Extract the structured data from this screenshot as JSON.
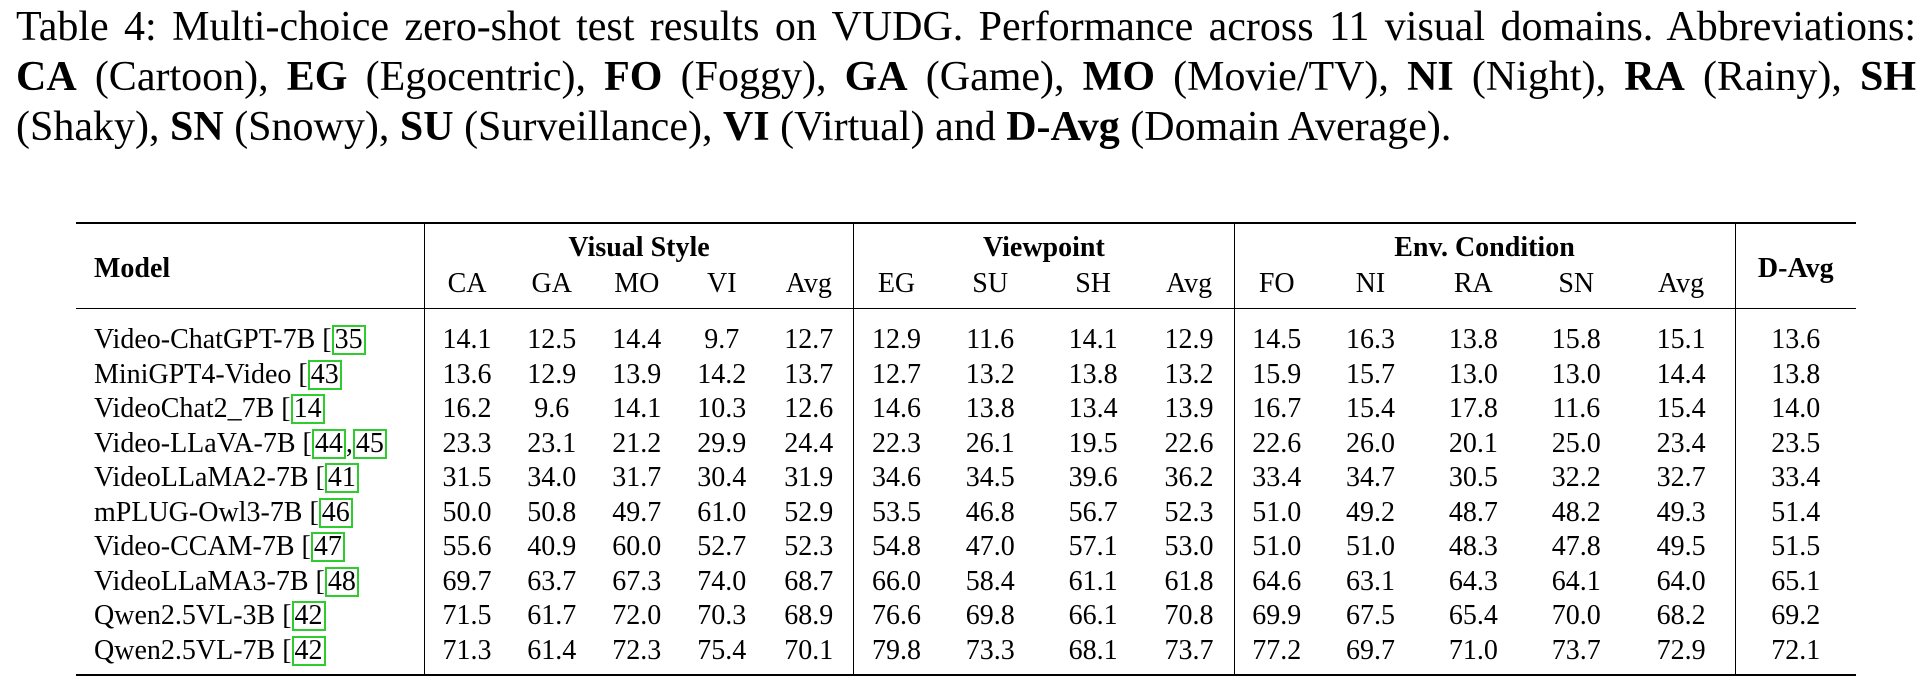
{
  "caption": {
    "prefix": "Table 4: Multi-choice zero-shot test results on VUDG. Performance across 11 visual domains. Abbreviations: ",
    "abbreviations": [
      {
        "abbr": "CA",
        "full": "(Cartoon)"
      },
      {
        "abbr": "EG",
        "full": "(Egocentric)"
      },
      {
        "abbr": "FO",
        "full": "(Foggy)"
      },
      {
        "abbr": "GA",
        "full": "(Game)"
      },
      {
        "abbr": "MO",
        "full": "(Movie/TV)"
      },
      {
        "abbr": "NI",
        "full": "(Night)"
      },
      {
        "abbr": "RA",
        "full": "(Rainy)"
      },
      {
        "abbr": "SH",
        "full": "(Shaky)"
      },
      {
        "abbr": "SN",
        "full": "(Snowy)"
      },
      {
        "abbr": "SU",
        "full": "(Surveillance)"
      },
      {
        "abbr": "VI",
        "full": "(Virtual)"
      },
      {
        "abbr": "D-Avg",
        "full": "(Domain Average)."
      }
    ],
    "and_word": "and"
  },
  "table": {
    "model_header": "Model",
    "davg_header": "D-Avg",
    "groups": [
      {
        "name": "Visual Style",
        "cols": [
          "CA",
          "GA",
          "MO",
          "VI",
          "Avg"
        ]
      },
      {
        "name": "Viewpoint",
        "cols": [
          "EG",
          "SU",
          "SH",
          "Avg"
        ]
      },
      {
        "name": "Env. Condition",
        "cols": [
          "FO",
          "NI",
          "RA",
          "SN",
          "Avg"
        ]
      }
    ],
    "rows": [
      {
        "model": "Video-ChatGPT-7B",
        "refs": [
          "35"
        ],
        "vals": [
          "14.1",
          "12.5",
          "14.4",
          "9.7",
          "12.7",
          "12.9",
          "11.6",
          "14.1",
          "12.9",
          "14.5",
          "16.3",
          "13.8",
          "15.8",
          "15.1",
          "13.6"
        ]
      },
      {
        "model": "MiniGPT4-Video",
        "refs": [
          "43"
        ],
        "vals": [
          "13.6",
          "12.9",
          "13.9",
          "14.2",
          "13.7",
          "12.7",
          "13.2",
          "13.8",
          "13.2",
          "15.9",
          "15.7",
          "13.0",
          "13.0",
          "14.4",
          "13.8"
        ]
      },
      {
        "model": "VideoChat2_7B",
        "refs": [
          "14"
        ],
        "vals": [
          "16.2",
          "9.6",
          "14.1",
          "10.3",
          "12.6",
          "14.6",
          "13.8",
          "13.4",
          "13.9",
          "16.7",
          "15.4",
          "17.8",
          "11.6",
          "15.4",
          "14.0"
        ]
      },
      {
        "model": "Video-LLaVA-7B",
        "refs": [
          "44",
          "45"
        ],
        "vals": [
          "23.3",
          "23.1",
          "21.2",
          "29.9",
          "24.4",
          "22.3",
          "26.1",
          "19.5",
          "22.6",
          "22.6",
          "26.0",
          "20.1",
          "25.0",
          "23.4",
          "23.5"
        ]
      },
      {
        "model": "VideoLLaMA2-7B",
        "refs": [
          "41"
        ],
        "vals": [
          "31.5",
          "34.0",
          "31.7",
          "30.4",
          "31.9",
          "34.6",
          "34.5",
          "39.6",
          "36.2",
          "33.4",
          "34.7",
          "30.5",
          "32.2",
          "32.7",
          "33.4"
        ]
      },
      {
        "model": "mPLUG-Owl3-7B",
        "refs": [
          "46"
        ],
        "vals": [
          "50.0",
          "50.8",
          "49.7",
          "61.0",
          "52.9",
          "53.5",
          "46.8",
          "56.7",
          "52.3",
          "51.0",
          "49.2",
          "48.7",
          "48.2",
          "49.3",
          "51.4"
        ]
      },
      {
        "model": "Video-CCAM-7B",
        "refs": [
          "47"
        ],
        "vals": [
          "55.6",
          "40.9",
          "60.0",
          "52.7",
          "52.3",
          "54.8",
          "47.0",
          "57.1",
          "53.0",
          "51.0",
          "51.0",
          "48.3",
          "47.8",
          "49.5",
          "51.5"
        ]
      },
      {
        "model": "VideoLLaMA3-7B",
        "refs": [
          "48"
        ],
        "vals": [
          "69.7",
          "63.7",
          "67.3",
          "74.0",
          "68.7",
          "66.0",
          "58.4",
          "61.1",
          "61.8",
          "64.6",
          "63.1",
          "64.3",
          "64.1",
          "64.0",
          "65.1"
        ]
      },
      {
        "model": "Qwen2.5VL-3B",
        "refs": [
          "42"
        ],
        "vals": [
          "71.5",
          "61.7",
          "72.0",
          "70.3",
          "68.9",
          "76.6",
          "69.8",
          "66.1",
          "70.8",
          "69.9",
          "67.5",
          "65.4",
          "70.0",
          "68.2",
          "69.2"
        ]
      },
      {
        "model": "Qwen2.5VL-7B",
        "refs": [
          "42"
        ],
        "vals": [
          "71.3",
          "61.4",
          "72.3",
          "75.4",
          "70.1",
          "79.8",
          "73.3",
          "68.1",
          "73.7",
          "77.2",
          "69.7",
          "71.0",
          "73.7",
          "72.9",
          "72.1"
        ]
      }
    ]
  }
}
